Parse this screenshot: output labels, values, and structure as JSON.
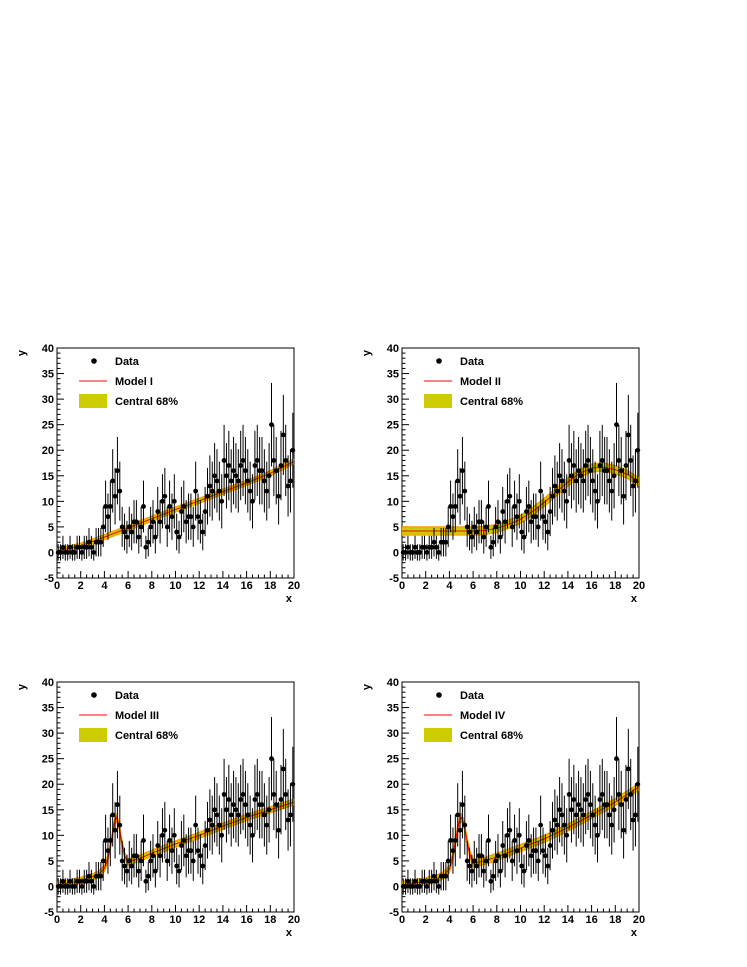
{
  "colors": {
    "data": "#000000",
    "model": "#ff0000",
    "band": "#cccc00",
    "band_edge": "#ff9900",
    "background": "#ffffff",
    "axis": "#000000"
  },
  "chart_data": [
    {
      "type": "scatter",
      "xlabel": "x",
      "ylabel": "y",
      "xlim": [
        0,
        20
      ],
      "ylim": [
        -5,
        40
      ],
      "xticks": [
        "0",
        "2",
        "4",
        "6",
        "8",
        "10",
        "12",
        "14",
        "16",
        "18",
        "20"
      ],
      "yticks": [
        "-5",
        "0",
        "5",
        "10",
        "15",
        "20",
        "25",
        "30",
        "35",
        "40"
      ],
      "legend": {
        "placement": "top-left",
        "entries": [
          "Data",
          "Model I",
          "Central 68%"
        ]
      },
      "model": {
        "name": "Model I",
        "x": [
          0,
          2,
          4,
          6,
          8,
          10,
          12,
          14,
          16,
          18,
          20
        ],
        "y": [
          0.3,
          1.3,
          3.0,
          4.8,
          6.6,
          8.4,
          10.1,
          11.9,
          13.6,
          15.5,
          17.8
        ]
      },
      "band": {
        "half_width": 0.5
      }
    },
    {
      "type": "scatter",
      "xlabel": "x",
      "ylabel": "y",
      "xlim": [
        0,
        20
      ],
      "ylim": [
        -5,
        40
      ],
      "xticks": [
        "0",
        "2",
        "4",
        "6",
        "8",
        "10",
        "12",
        "14",
        "16",
        "18",
        "20"
      ],
      "yticks": [
        "-5",
        "0",
        "5",
        "10",
        "15",
        "20",
        "25",
        "30",
        "35",
        "40"
      ],
      "legend": {
        "placement": "top-left",
        "entries": [
          "Data",
          "Model II",
          "Central 68%"
        ]
      },
      "model": {
        "name": "Model II",
        "x": [
          0,
          2,
          4,
          6,
          7,
          8,
          9,
          10,
          11,
          12,
          13,
          14,
          15,
          16,
          17,
          18,
          19,
          20
        ],
        "y": [
          4.2,
          4.2,
          4.2,
          4.2,
          4.3,
          4.7,
          5.5,
          6.5,
          8.0,
          9.8,
          11.8,
          13.8,
          15.5,
          16.5,
          16.7,
          16.2,
          15.3,
          13.8
        ]
      },
      "band": {
        "half_width": 0.8
      }
    },
    {
      "type": "scatter",
      "xlabel": "x",
      "ylabel": "y",
      "xlim": [
        0,
        20
      ],
      "ylim": [
        -5,
        40
      ],
      "xticks": [
        "0",
        "2",
        "4",
        "6",
        "8",
        "10",
        "12",
        "14",
        "16",
        "18",
        "20"
      ],
      "yticks": [
        "-5",
        "0",
        "5",
        "10",
        "15",
        "20",
        "25",
        "30",
        "35",
        "40"
      ],
      "legend": {
        "placement": "top-left",
        "entries": [
          "Data",
          "Model III",
          "Central 68%"
        ]
      },
      "model": {
        "name": "Model III",
        "x": [
          0,
          1,
          2,
          3,
          3.5,
          4,
          4.3,
          4.6,
          4.8,
          5.0,
          5.2,
          5.4,
          5.7,
          6.0,
          7,
          8,
          10,
          12,
          14,
          16,
          18,
          20
        ],
        "y": [
          0.3,
          0.7,
          1.2,
          1.9,
          2.4,
          3.5,
          5.5,
          9.0,
          12.0,
          13.5,
          12.3,
          9.5,
          6.0,
          4.8,
          5.5,
          6.5,
          8.3,
          10.0,
          11.8,
          13.5,
          15.0,
          16.5
        ]
      },
      "band": {
        "half_width": 0.6
      }
    },
    {
      "type": "scatter",
      "xlabel": "x",
      "ylabel": "y",
      "xlim": [
        0,
        20
      ],
      "ylim": [
        -5,
        40
      ],
      "xticks": [
        "0",
        "2",
        "4",
        "6",
        "8",
        "10",
        "12",
        "14",
        "16",
        "18",
        "20"
      ],
      "yticks": [
        "-5",
        "0",
        "5",
        "10",
        "15",
        "20",
        "25",
        "30",
        "35",
        "40"
      ],
      "legend": {
        "placement": "top-left",
        "entries": [
          "Data",
          "Model IV",
          "Central 68%"
        ]
      },
      "model": {
        "name": "Model IV",
        "x": [
          0,
          1,
          2,
          3,
          3.5,
          4,
          4.3,
          4.6,
          4.8,
          5.0,
          5.2,
          5.4,
          5.7,
          6.0,
          7,
          8,
          10,
          12,
          14,
          16,
          18,
          20
        ],
        "y": [
          0.3,
          0.6,
          1.0,
          1.6,
          2.2,
          3.4,
          6.0,
          10.0,
          12.5,
          13.5,
          12.5,
          10.0,
          6.5,
          4.5,
          5.0,
          5.8,
          7.5,
          9.3,
          11.5,
          14.0,
          16.5,
          19.5
        ]
      },
      "band": {
        "half_width": 0.7
      }
    }
  ],
  "dataset": {
    "name": "Data",
    "x": [
      0.1,
      0.3,
      0.5,
      0.7,
      0.9,
      1.1,
      1.3,
      1.5,
      1.7,
      1.9,
      2.1,
      2.3,
      2.5,
      2.7,
      2.9,
      3.1,
      3.3,
      3.5,
      3.7,
      3.9,
      4.1,
      4.3,
      4.5,
      4.7,
      4.9,
      5.1,
      5.3,
      5.5,
      5.7,
      5.9,
      6.1,
      6.3,
      6.5,
      6.7,
      6.9,
      7.1,
      7.3,
      7.5,
      7.7,
      7.9,
      8.1,
      8.3,
      8.5,
      8.7,
      8.9,
      9.1,
      9.3,
      9.5,
      9.7,
      9.9,
      10.1,
      10.3,
      10.5,
      10.7,
      10.9,
      11.1,
      11.3,
      11.5,
      11.7,
      11.9,
      12.1,
      12.3,
      12.5,
      12.7,
      12.9,
      13.1,
      13.3,
      13.5,
      13.7,
      13.9,
      14.1,
      14.3,
      14.5,
      14.7,
      14.9,
      15.1,
      15.3,
      15.5,
      15.7,
      15.9,
      16.1,
      16.3,
      16.5,
      16.7,
      16.9,
      17.1,
      17.3,
      17.5,
      17.7,
      17.9,
      18.1,
      18.3,
      18.5,
      18.7,
      18.9,
      19.1,
      19.3,
      19.5,
      19.7,
      19.9
    ],
    "y": [
      0,
      0,
      1,
      0,
      0,
      1,
      0,
      0,
      1,
      1,
      0,
      1,
      1,
      2,
      1,
      0,
      2,
      2,
      2,
      5,
      9,
      7,
      9,
      14,
      11,
      16,
      12,
      5,
      4,
      3,
      5,
      4,
      6,
      6,
      3,
      5,
      9,
      1,
      2,
      5,
      6,
      3,
      8,
      6,
      10,
      11,
      5,
      9,
      7,
      10,
      4,
      3,
      8,
      9,
      6,
      7,
      7,
      5,
      12,
      7,
      6,
      4,
      8,
      11,
      13,
      12,
      15,
      14,
      12,
      10,
      18,
      15,
      17,
      14,
      16,
      15,
      14,
      17,
      18,
      16,
      14,
      12,
      10,
      17,
      18,
      16,
      16,
      14,
      12,
      15,
      25,
      18,
      16,
      11,
      17,
      23,
      18,
      13,
      14,
      20
    ],
    "xerr": 0.1
  }
}
